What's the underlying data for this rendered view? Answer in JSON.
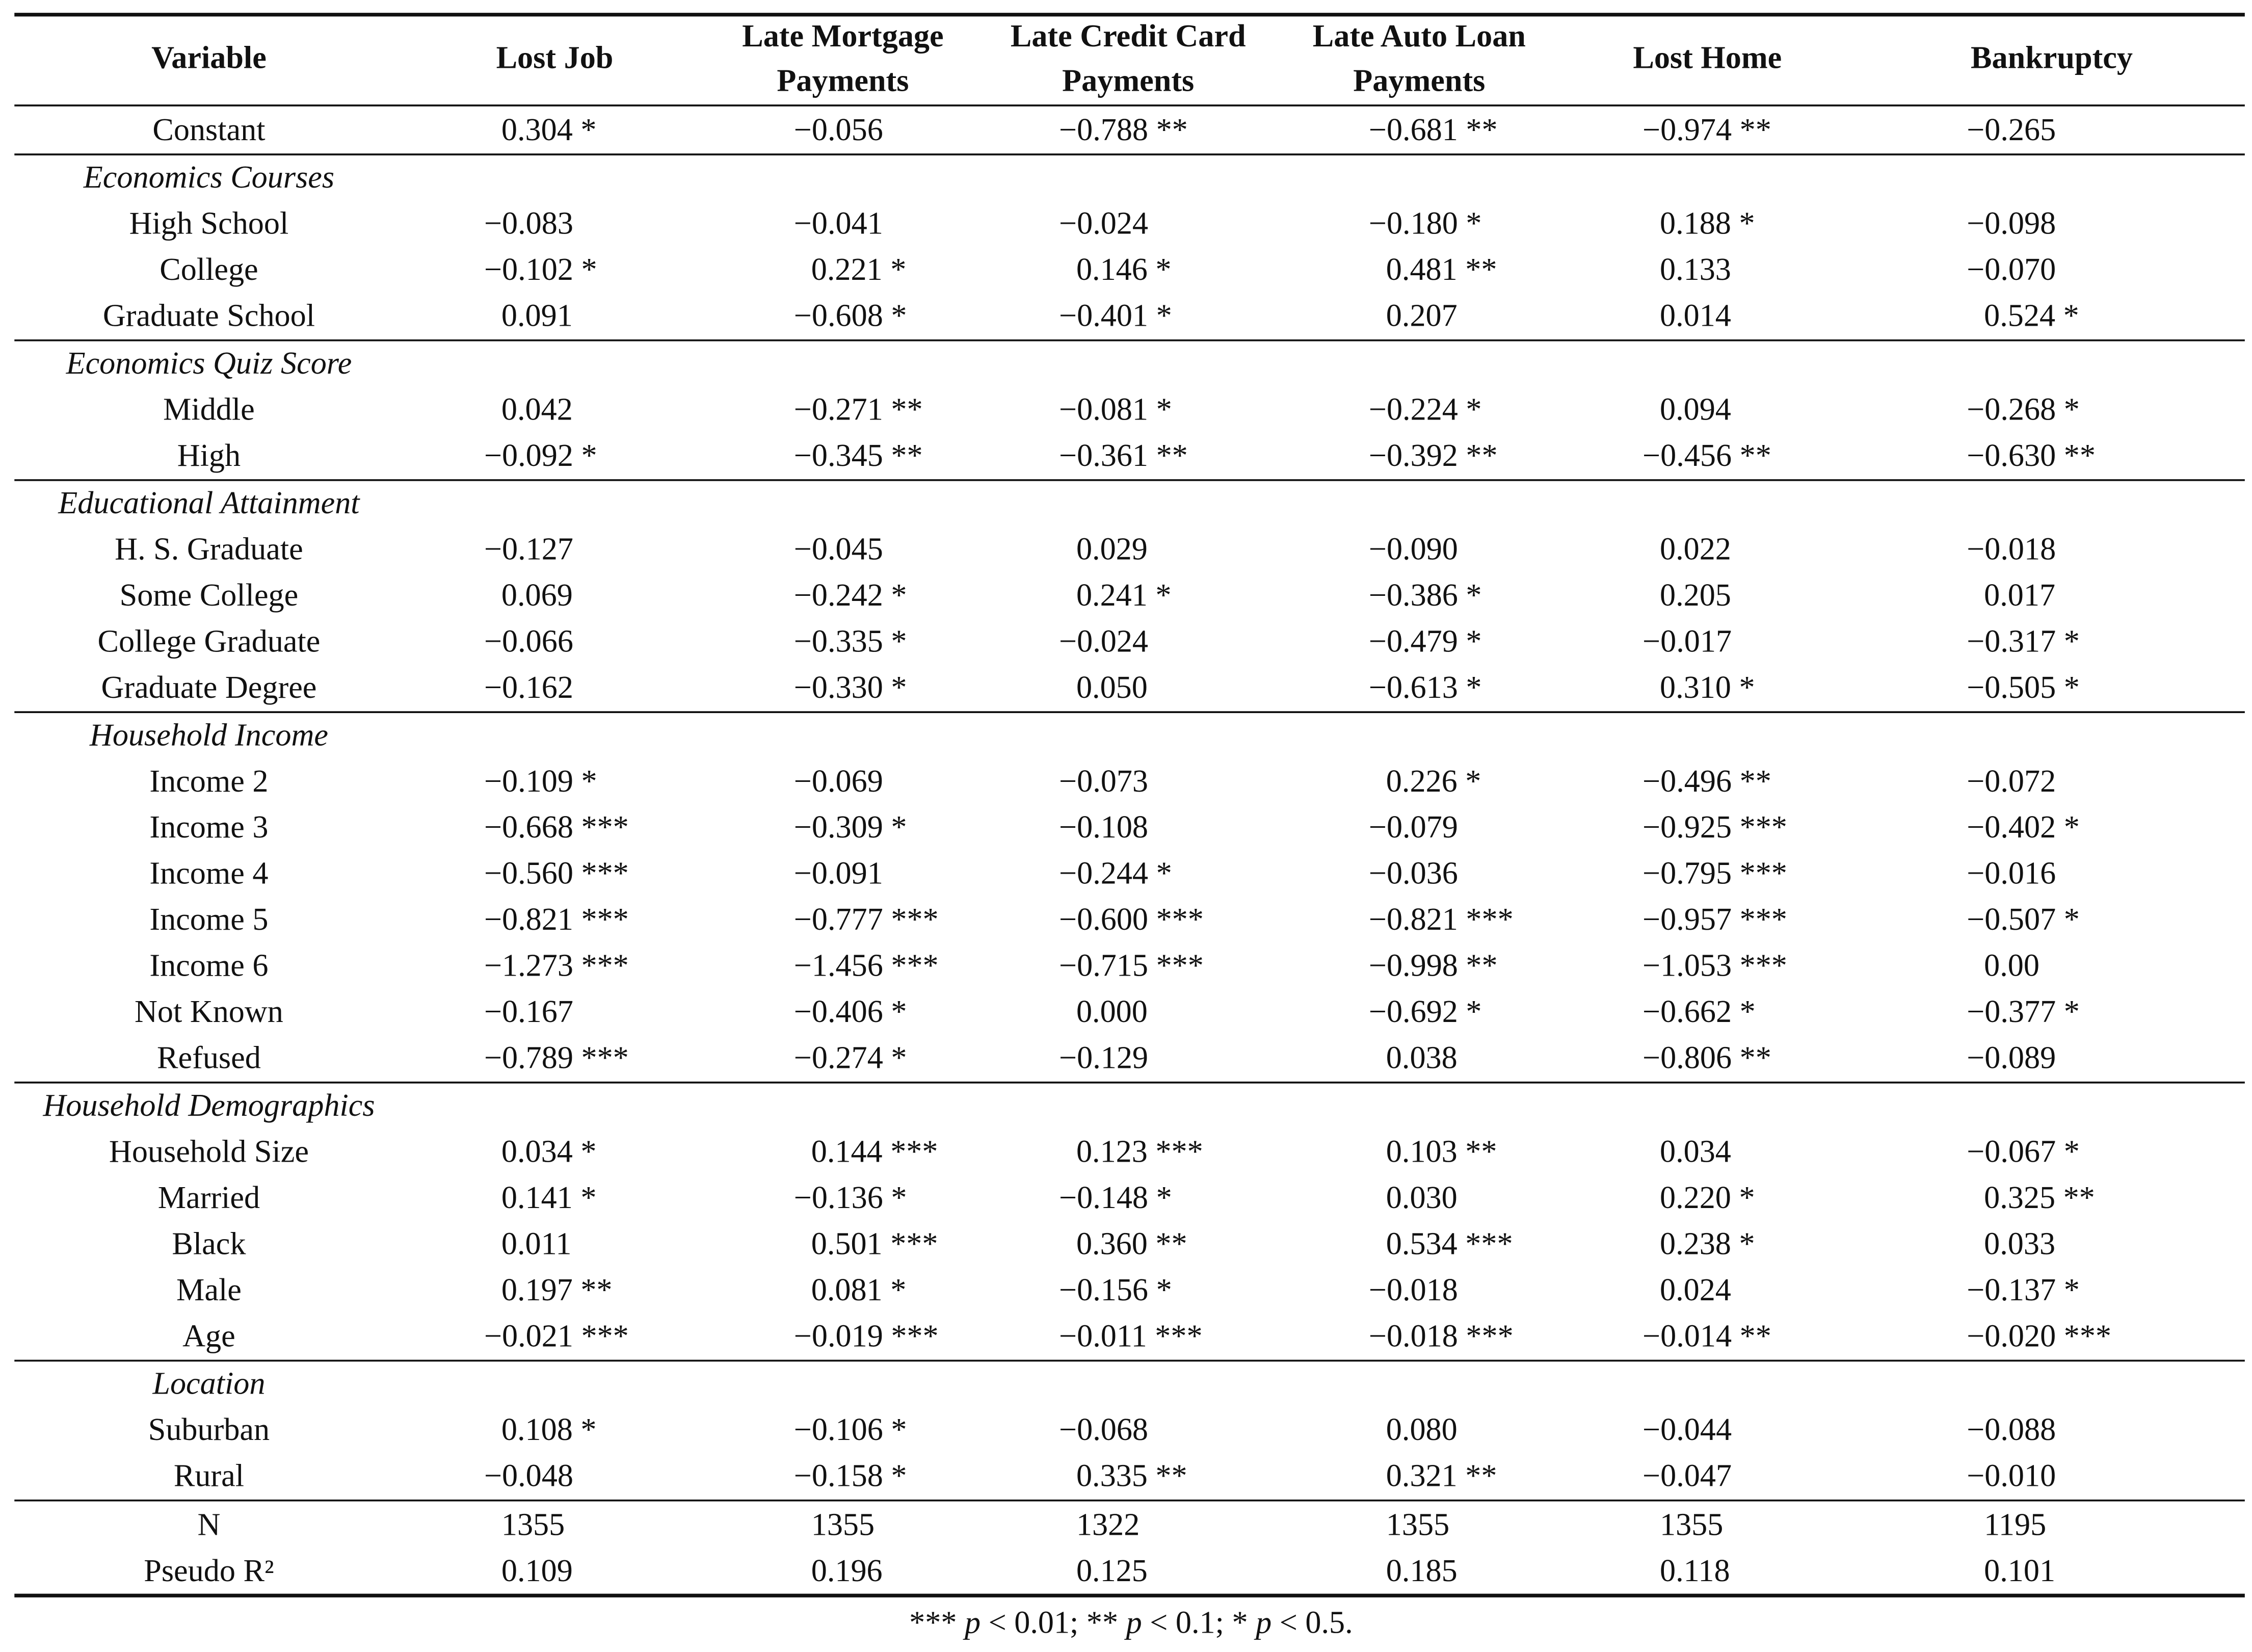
{
  "header": {
    "columns": [
      [
        "Variable"
      ],
      [
        "Lost Job"
      ],
      [
        "Late Mortgage",
        "Payments"
      ],
      [
        "Late Credit Card",
        "Payments"
      ],
      [
        "Late Auto Loan",
        "Payments"
      ],
      [
        "Lost Home"
      ],
      [
        "Bankruptcy"
      ]
    ]
  },
  "sections": [
    {
      "rows": [
        {
          "label": "Constant",
          "values": [
            "0.304 *",
            "−0.056",
            "−0.788 **",
            "−0.681 **",
            "−0.974 **",
            "−0.265"
          ]
        }
      ]
    },
    {
      "title": "Economics Courses",
      "rows": [
        {
          "label": "High School",
          "values": [
            "−0.083",
            "−0.041",
            "−0.024",
            "−0.180 *",
            "0.188 *",
            "−0.098"
          ]
        },
        {
          "label": "College",
          "values": [
            "−0.102 *",
            "0.221 *",
            "0.146 *",
            "0.481 **",
            "0.133",
            "−0.070"
          ]
        },
        {
          "label": "Graduate School",
          "values": [
            "0.091",
            "−0.608 *",
            "−0.401 *",
            "0.207",
            "0.014",
            "0.524 *"
          ]
        }
      ]
    },
    {
      "title": "Economics Quiz Score",
      "rows": [
        {
          "label": "Middle",
          "values": [
            "0.042",
            "−0.271 **",
            "−0.081 *",
            "−0.224 *",
            "0.094",
            "−0.268 *"
          ]
        },
        {
          "label": "High",
          "values": [
            "−0.092 *",
            "−0.345 **",
            "−0.361 **",
            "−0.392 **",
            "−0.456 **",
            "−0.630 **"
          ]
        }
      ]
    },
    {
      "title": "Educational Attainment",
      "rows": [
        {
          "label": "H. S. Graduate",
          "values": [
            "−0.127",
            "−0.045",
            "0.029",
            "−0.090",
            "0.022",
            "−0.018"
          ]
        },
        {
          "label": "Some College",
          "values": [
            "0.069",
            "−0.242 *",
            "0.241 *",
            "−0.386 *",
            "0.205",
            "0.017"
          ]
        },
        {
          "label": "College Graduate",
          "values": [
            "−0.066",
            "−0.335 *",
            "−0.024",
            "−0.479 *",
            "−0.017",
            "−0.317 *"
          ]
        },
        {
          "label": "Graduate Degree",
          "values": [
            "−0.162",
            "−0.330 *",
            "0.050",
            "−0.613 *",
            "0.310 *",
            "−0.505 *"
          ]
        }
      ]
    },
    {
      "title": "Household Income",
      "rows": [
        {
          "label": "Income 2",
          "values": [
            "−0.109 *",
            "−0.069",
            "−0.073",
            "0.226 *",
            "−0.496 **",
            "−0.072"
          ]
        },
        {
          "label": "Income 3",
          "values": [
            "−0.668 ***",
            "−0.309 *",
            "−0.108",
            "−0.079",
            "−0.925 ***",
            "−0.402 *"
          ]
        },
        {
          "label": "Income 4",
          "values": [
            "−0.560 ***",
            "−0.091",
            "−0.244 *",
            "−0.036",
            "−0.795 ***",
            "−0.016"
          ]
        },
        {
          "label": "Income 5",
          "values": [
            "−0.821 ***",
            "−0.777 ***",
            "−0.600 ***",
            "−0.821 ***",
            "−0.957 ***",
            "−0.507 *"
          ]
        },
        {
          "label": "Income 6",
          "values": [
            "−1.273 ***",
            "−1.456 ***",
            "−0.715 ***",
            "−0.998 **",
            "−1.053 ***",
            "0.00"
          ]
        },
        {
          "label": "Not Known",
          "values": [
            "−0.167",
            "−0.406 *",
            "0.000",
            "−0.692 *",
            "−0.662 *",
            "−0.377 *"
          ]
        },
        {
          "label": "Refused",
          "values": [
            "−0.789 ***",
            "−0.274 *",
            "−0.129",
            "0.038",
            "−0.806 **",
            "−0.089"
          ]
        }
      ]
    },
    {
      "title": "Household Demographics",
      "rows": [
        {
          "label": "Household Size",
          "values": [
            "0.034 *",
            "0.144 ***",
            "0.123 ***",
            "0.103 **",
            "0.034",
            "−0.067 *"
          ]
        },
        {
          "label": "Married",
          "values": [
            "0.141 *",
            "−0.136 *",
            "−0.148 *",
            "0.030",
            "0.220 *",
            "0.325 **"
          ]
        },
        {
          "label": "Black",
          "values": [
            "0.011",
            "0.501 ***",
            "0.360 **",
            "0.534 ***",
            "0.238 *",
            "0.033"
          ]
        },
        {
          "label": "Male",
          "values": [
            "0.197 **",
            "0.081 *",
            "−0.156 *",
            "−0.018",
            "0.024",
            "−0.137 *"
          ]
        },
        {
          "label": "Age",
          "values": [
            "−0.021 ***",
            "−0.019 ***",
            "−0.011 ***",
            "−0.018 ***",
            "−0.014 **",
            "−0.020 ***"
          ]
        }
      ]
    },
    {
      "title": "Location",
      "rows": [
        {
          "label": "Suburban",
          "values": [
            "0.108 *",
            "−0.106 *",
            "−0.068",
            "0.080",
            "−0.044",
            "−0.088"
          ]
        },
        {
          "label": "Rural",
          "values": [
            "−0.048",
            "−0.158 *",
            "0.335 **",
            "0.321 **",
            "−0.047",
            "−0.010"
          ]
        }
      ]
    },
    {
      "rows": [
        {
          "label": "N",
          "values": [
            "1355",
            "1355",
            "1322",
            "1355",
            "1355",
            "1195"
          ]
        },
        {
          "label": "Pseudo R²",
          "values": [
            "0.109",
            "0.196",
            "0.125",
            "0.185",
            "0.118",
            "0.101"
          ]
        }
      ]
    }
  ],
  "footnote": [
    "*** ",
    "p",
    " < 0.01; ** ",
    "p",
    " < 0.1; * ",
    "p",
    " < 0.5."
  ]
}
